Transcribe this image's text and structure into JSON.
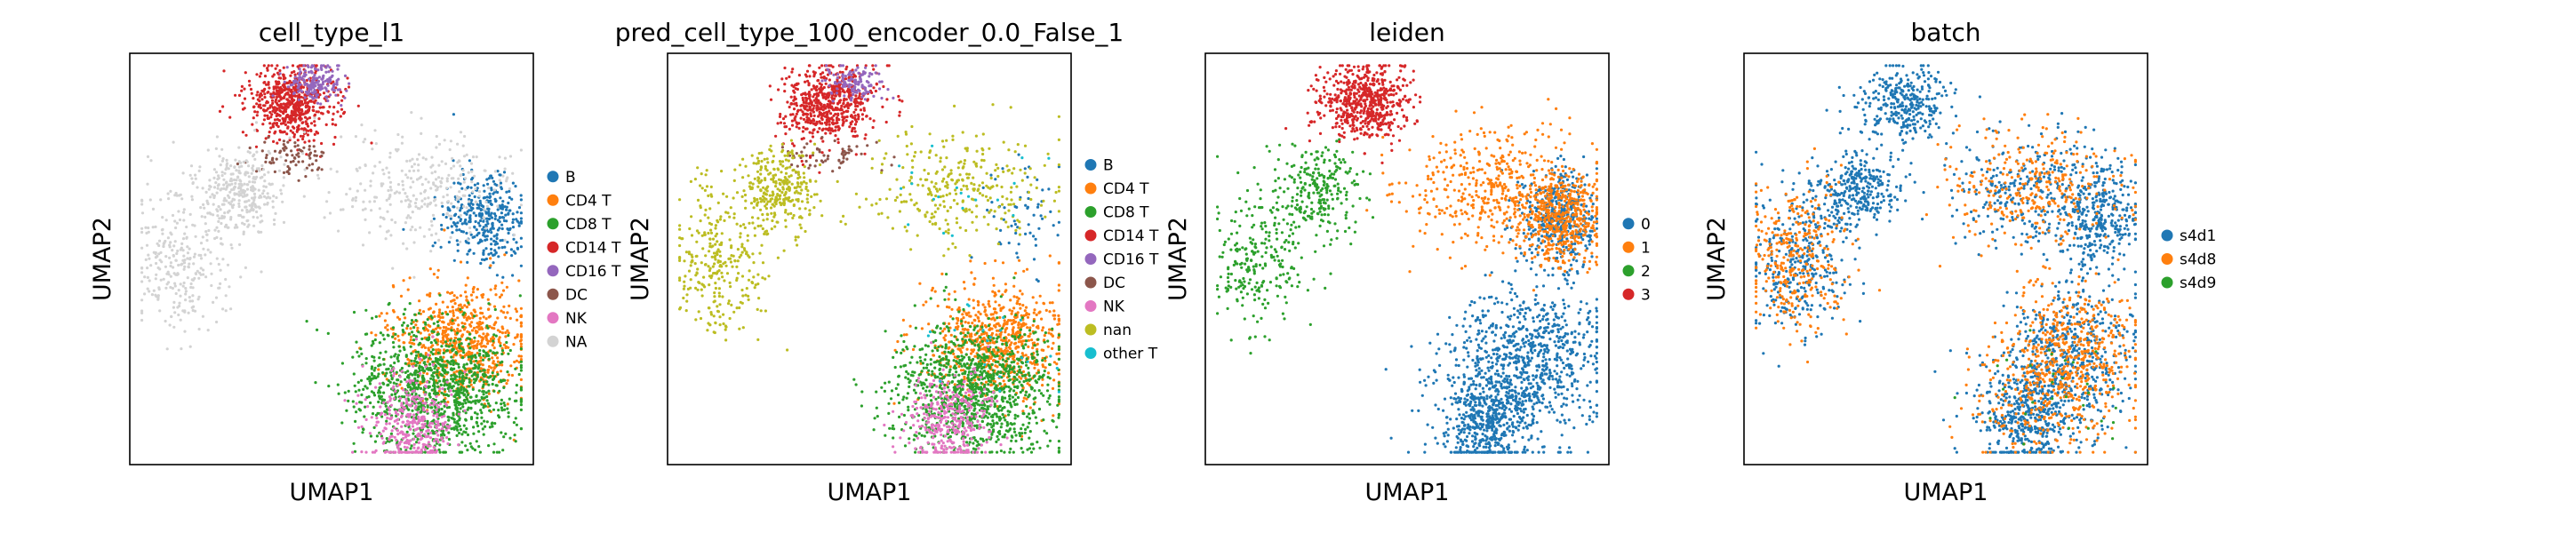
{
  "chart_data": [
    {
      "type": "scatter",
      "title": "cell_type_l1",
      "xlabel": "UMAP1",
      "ylabel": "UMAP2",
      "grid": false,
      "legend_position": "right",
      "series": [
        {
          "name": "B",
          "color": "#1f77b4",
          "region": "right-mid"
        },
        {
          "name": "CD4 T",
          "color": "#ff7f0e",
          "region": "lower-right-upper"
        },
        {
          "name": "CD8 T",
          "color": "#2ca02c",
          "region": "lower-center"
        },
        {
          "name": "CD14 T",
          "color": "#d62728",
          "region": "top"
        },
        {
          "name": "CD16 T",
          "color": "#9467bd",
          "region": "top-right"
        },
        {
          "name": "DC",
          "color": "#8c564b",
          "region": "bridge"
        },
        {
          "name": "NK",
          "color": "#e377c2",
          "region": "lower-left"
        },
        {
          "name": "NA",
          "color": "#d3d3d3",
          "region": "left-arm-and-upper-right"
        }
      ]
    },
    {
      "type": "scatter",
      "title": "pred_cell_type_100_encoder_0.0_False_1",
      "xlabel": "UMAP1",
      "ylabel": "UMAP2",
      "grid": false,
      "legend_position": "right",
      "series": [
        {
          "name": "B",
          "color": "#1f77b4",
          "region": "right-mid-small"
        },
        {
          "name": "CD4 T",
          "color": "#ff7f0e",
          "region": "lower-right-upper"
        },
        {
          "name": "CD8 T",
          "color": "#2ca02c",
          "region": "lower-center"
        },
        {
          "name": "CD14 T",
          "color": "#d62728",
          "region": "top"
        },
        {
          "name": "CD16 T",
          "color": "#9467bd",
          "region": "top-right-small"
        },
        {
          "name": "DC",
          "color": "#8c564b",
          "region": "bridge-small"
        },
        {
          "name": "NK",
          "color": "#e377c2",
          "region": "lower-left"
        },
        {
          "name": "nan",
          "color": "#bcbd22",
          "region": "left-arm-and-upper-right"
        },
        {
          "name": "other T",
          "color": "#17becf",
          "region": "scattered"
        }
      ]
    },
    {
      "type": "scatter",
      "title": "leiden",
      "xlabel": "UMAP1",
      "ylabel": "UMAP2",
      "grid": false,
      "legend_position": "right",
      "series": [
        {
          "name": "0",
          "color": "#1f77b4",
          "region": "lower"
        },
        {
          "name": "1",
          "color": "#ff7f0e",
          "region": "upper-right"
        },
        {
          "name": "2",
          "color": "#2ca02c",
          "region": "left-arm"
        },
        {
          "name": "3",
          "color": "#d62728",
          "region": "top"
        }
      ]
    },
    {
      "type": "scatter",
      "title": "batch",
      "xlabel": "UMAP1",
      "ylabel": "UMAP2",
      "grid": false,
      "legend_position": "right",
      "series": [
        {
          "name": "s4d1",
          "color": "#1f77b4",
          "region": "all"
        },
        {
          "name": "s4d8",
          "color": "#ff7f0e",
          "region": "mixed"
        },
        {
          "name": "s4d9",
          "color": "#2ca02c",
          "region": "rare"
        }
      ]
    }
  ]
}
